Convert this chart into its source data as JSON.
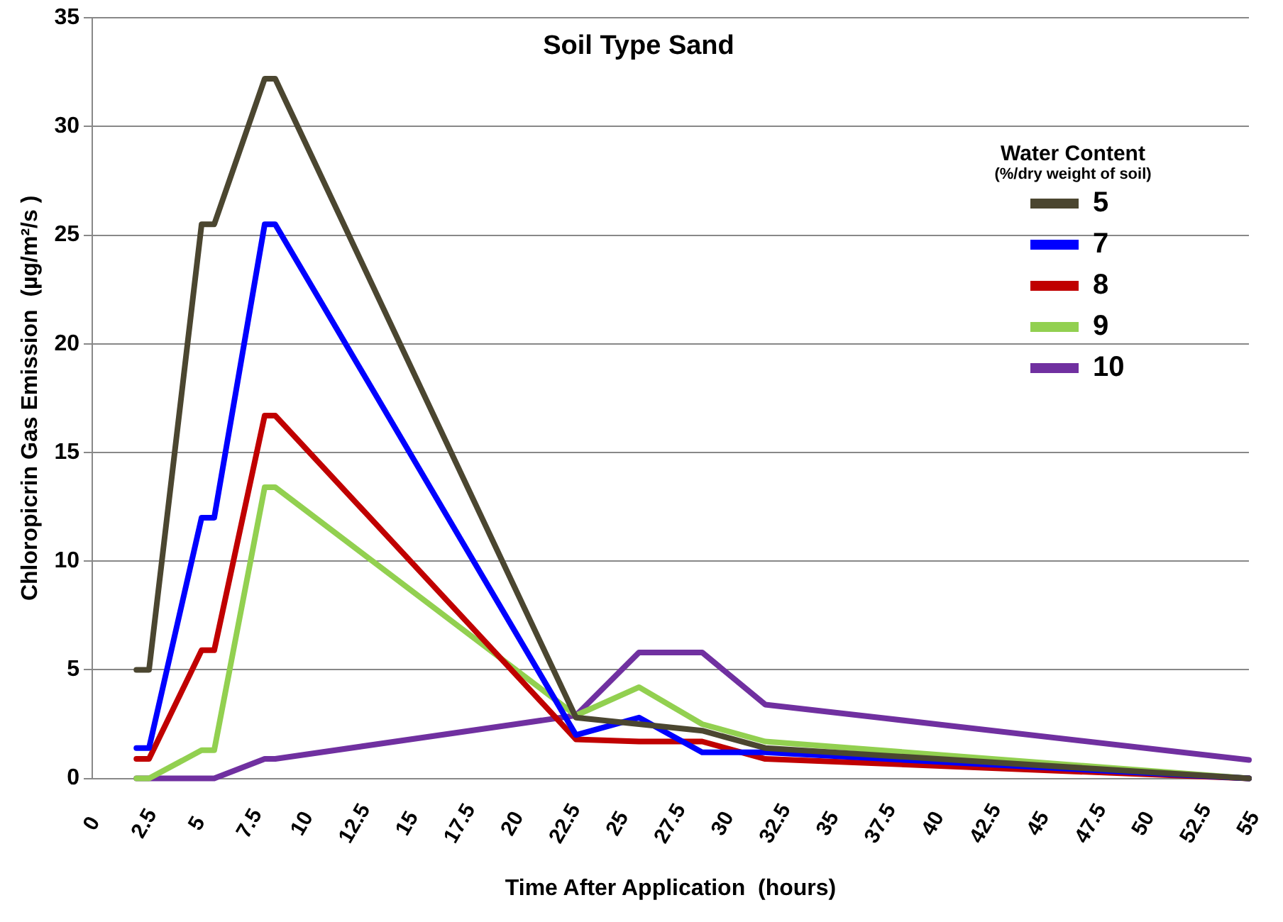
{
  "chart_data": {
    "type": "line",
    "title": "Soil Type Sand",
    "xlabel": "Time After Application  (hours)",
    "ylabel": "Chloropicrin Gas Emission  (µg/m²/s )",
    "legend_title": "Water Content\n(%/dry weight of soil)",
    "x": [
      2.1,
      2.7,
      5.2,
      5.8,
      8.2,
      8.7,
      23,
      26,
      29,
      32,
      55
    ],
    "series": [
      {
        "name": "5",
        "color": "#4b4630",
        "values": [
          5,
          5,
          25.5,
          25.5,
          32.2,
          32.2,
          2.8,
          2.5,
          2.2,
          1.4,
          0
        ]
      },
      {
        "name": "7",
        "color": "#0000ff",
        "values": [
          1.4,
          1.4,
          12,
          12,
          25.5,
          25.5,
          2,
          2.8,
          1.2,
          1.2,
          0
        ]
      },
      {
        "name": "8",
        "color": "#c00000",
        "values": [
          0.9,
          0.9,
          5.9,
          5.9,
          16.7,
          16.7,
          1.8,
          1.7,
          1.7,
          0.9,
          0
        ]
      },
      {
        "name": "9",
        "color": "#92d050",
        "values": [
          0,
          0,
          1.3,
          1.3,
          13.4,
          13.4,
          2.9,
          4.2,
          2.5,
          1.7,
          0
        ]
      },
      {
        "name": "10",
        "color": "#7030a0",
        "values": [
          0,
          0,
          0,
          0,
          0.9,
          0.9,
          2.9,
          5.8,
          5.8,
          3.4,
          0.85
        ]
      }
    ],
    "xlim": [
      0,
      55
    ],
    "xticks": [
      0,
      2.5,
      5,
      7.5,
      10,
      12.5,
      15,
      17.5,
      20,
      22.5,
      25,
      27.5,
      30,
      32.5,
      35,
      37.5,
      40,
      42.5,
      45,
      47.5,
      50,
      52.5,
      55
    ],
    "ylim": [
      0,
      35
    ],
    "yticks": [
      0,
      5,
      10,
      15,
      20,
      25,
      30,
      35
    ],
    "grid": "y",
    "legend": "right",
    "marker": "none",
    "line_style": "solid"
  }
}
